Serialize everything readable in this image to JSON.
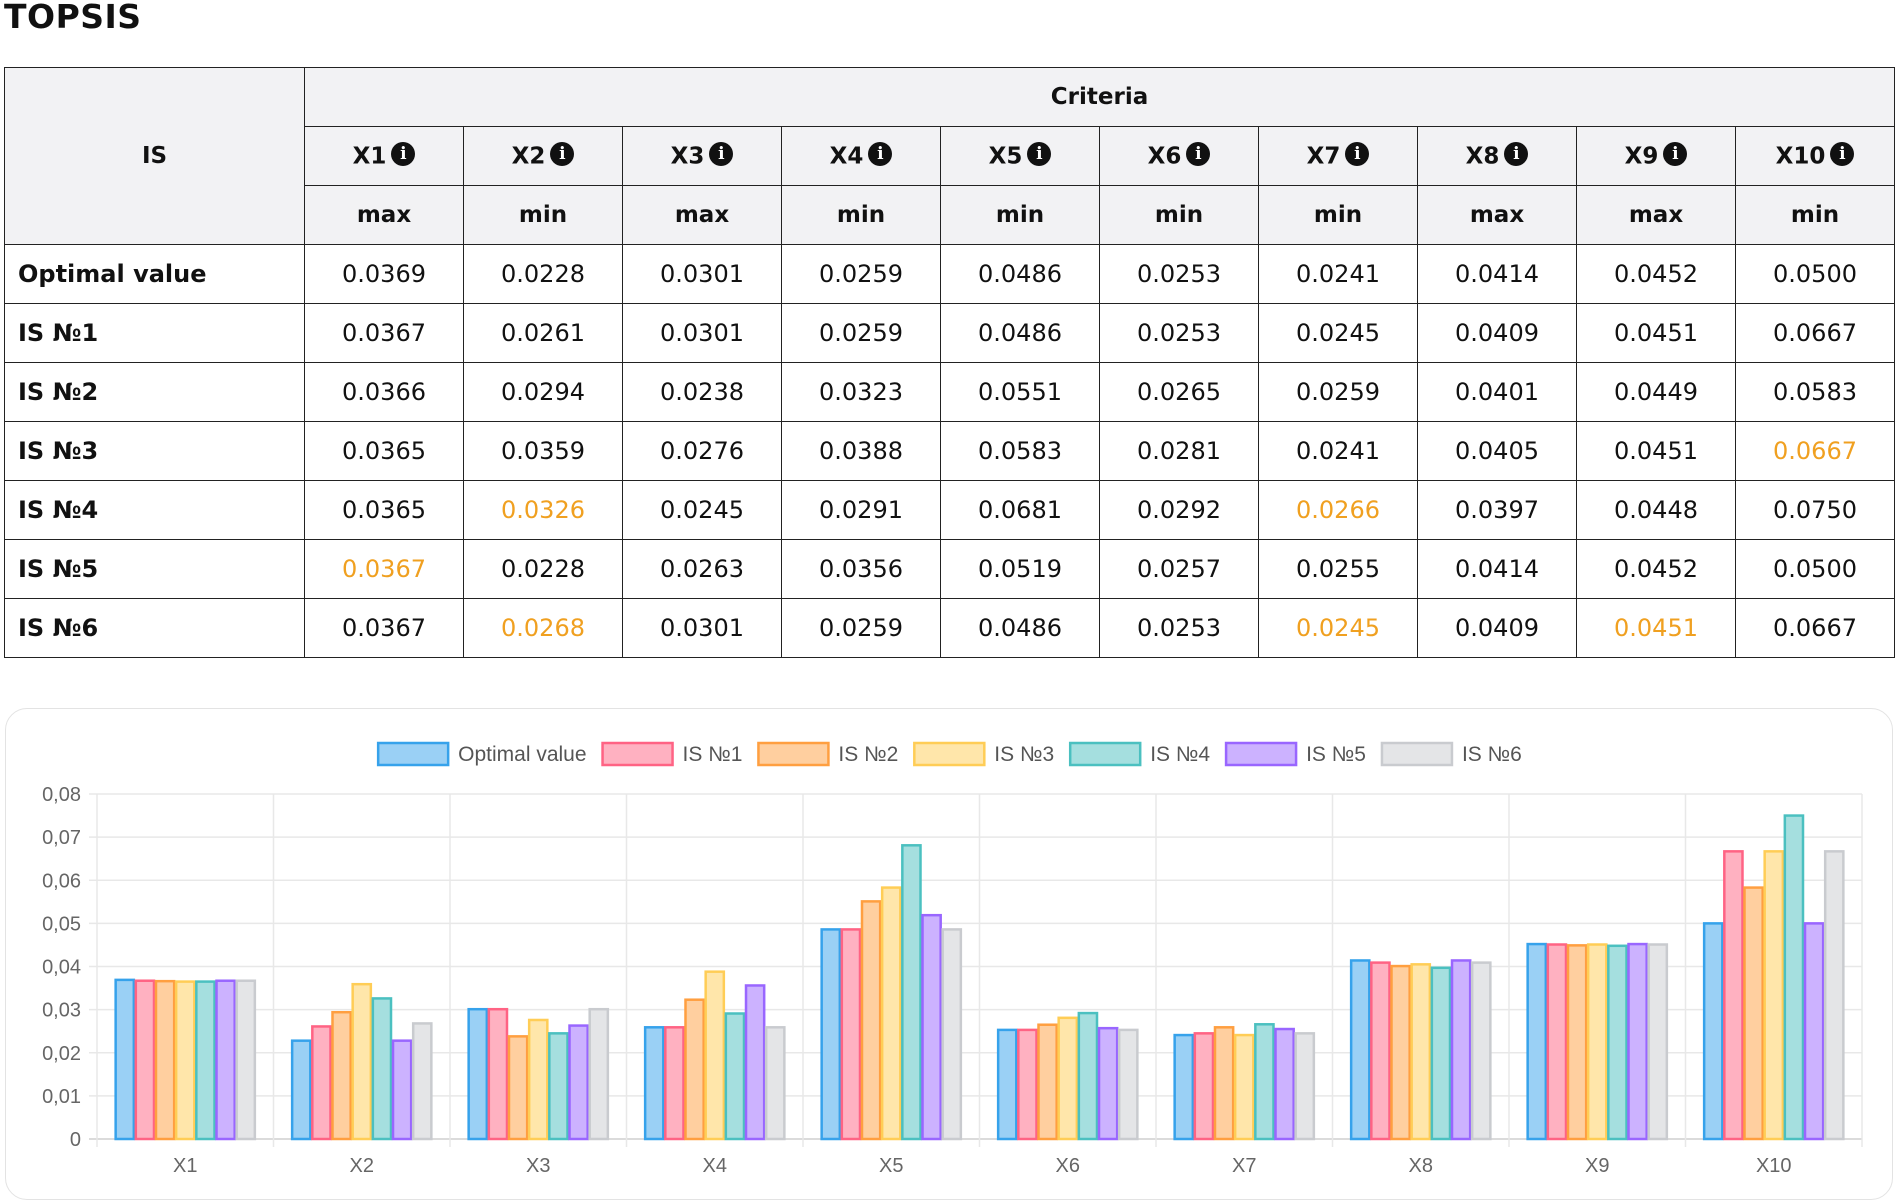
{
  "page": {
    "title": "TOPSIS"
  },
  "table": {
    "is_header": "IS",
    "criteria_header": "Criteria",
    "criteria": [
      {
        "name": "X1",
        "direction": "max"
      },
      {
        "name": "X2",
        "direction": "min"
      },
      {
        "name": "X3",
        "direction": "max"
      },
      {
        "name": "X4",
        "direction": "min"
      },
      {
        "name": "X5",
        "direction": "min"
      },
      {
        "name": "X6",
        "direction": "min"
      },
      {
        "name": "X7",
        "direction": "min"
      },
      {
        "name": "X8",
        "direction": "max"
      },
      {
        "name": "X9",
        "direction": "max"
      },
      {
        "name": "X10",
        "direction": "min"
      }
    ],
    "info_icon": "info-circle-icon",
    "highlight_color": "#f0a020",
    "rows": [
      {
        "label": "Optimal value",
        "values": [
          "0.0369",
          "0.0228",
          "0.0301",
          "0.0259",
          "0.0486",
          "0.0253",
          "0.0241",
          "0.0414",
          "0.0452",
          "0.0500"
        ],
        "highlights": []
      },
      {
        "label": "IS №1",
        "values": [
          "0.0367",
          "0.0261",
          "0.0301",
          "0.0259",
          "0.0486",
          "0.0253",
          "0.0245",
          "0.0409",
          "0.0451",
          "0.0667"
        ],
        "highlights": []
      },
      {
        "label": "IS №2",
        "values": [
          "0.0366",
          "0.0294",
          "0.0238",
          "0.0323",
          "0.0551",
          "0.0265",
          "0.0259",
          "0.0401",
          "0.0449",
          "0.0583"
        ],
        "highlights": []
      },
      {
        "label": "IS №3",
        "values": [
          "0.0365",
          "0.0359",
          "0.0276",
          "0.0388",
          "0.0583",
          "0.0281",
          "0.0241",
          "0.0405",
          "0.0451",
          "0.0667"
        ],
        "highlights": [
          9
        ]
      },
      {
        "label": "IS №4",
        "values": [
          "0.0365",
          "0.0326",
          "0.0245",
          "0.0291",
          "0.0681",
          "0.0292",
          "0.0266",
          "0.0397",
          "0.0448",
          "0.0750"
        ],
        "highlights": [
          1,
          6
        ]
      },
      {
        "label": "IS №5",
        "values": [
          "0.0367",
          "0.0228",
          "0.0263",
          "0.0356",
          "0.0519",
          "0.0257",
          "0.0255",
          "0.0414",
          "0.0452",
          "0.0500"
        ],
        "highlights": [
          0
        ]
      },
      {
        "label": "IS №6",
        "values": [
          "0.0367",
          "0.0268",
          "0.0301",
          "0.0259",
          "0.0486",
          "0.0253",
          "0.0245",
          "0.0409",
          "0.0451",
          "0.0667"
        ],
        "highlights": [
          1,
          6,
          8
        ]
      }
    ]
  },
  "chart_data": {
    "type": "bar",
    "categories": [
      "X1",
      "X2",
      "X3",
      "X4",
      "X5",
      "X6",
      "X7",
      "X8",
      "X9",
      "X10"
    ],
    "ylim": [
      0,
      0.08
    ],
    "yticks": [
      "0",
      "0,01",
      "0,02",
      "0,03",
      "0,04",
      "0,05",
      "0,06",
      "0,07",
      "0,08"
    ],
    "legend_position": "top",
    "grid": true,
    "series": [
      {
        "name": "Optimal value",
        "stroke": "#36a2eb",
        "fill": "#9ad0f5",
        "values": [
          0.0369,
          0.0228,
          0.0301,
          0.0259,
          0.0486,
          0.0253,
          0.0241,
          0.0414,
          0.0452,
          0.05
        ]
      },
      {
        "name": "IS №1",
        "stroke": "#ff6384",
        "fill": "#ffb1c1",
        "values": [
          0.0367,
          0.0261,
          0.0301,
          0.0259,
          0.0486,
          0.0253,
          0.0245,
          0.0409,
          0.0451,
          0.0667
        ]
      },
      {
        "name": "IS №2",
        "stroke": "#ff9f40",
        "fill": "#ffcf9f",
        "values": [
          0.0366,
          0.0294,
          0.0238,
          0.0323,
          0.0551,
          0.0265,
          0.0259,
          0.0401,
          0.0449,
          0.0583
        ]
      },
      {
        "name": "IS №3",
        "stroke": "#ffcd56",
        "fill": "#ffe6aa",
        "values": [
          0.0365,
          0.0359,
          0.0276,
          0.0388,
          0.0583,
          0.0281,
          0.0241,
          0.0405,
          0.0451,
          0.0667
        ]
      },
      {
        "name": "IS №4",
        "stroke": "#4bc0c0",
        "fill": "#a5dfdf",
        "values": [
          0.0365,
          0.0326,
          0.0245,
          0.0291,
          0.0681,
          0.0292,
          0.0266,
          0.0397,
          0.0448,
          0.075
        ]
      },
      {
        "name": "IS №5",
        "stroke": "#9966ff",
        "fill": "#ccb2ff",
        "values": [
          0.0367,
          0.0228,
          0.0263,
          0.0356,
          0.0519,
          0.0257,
          0.0255,
          0.0414,
          0.0452,
          0.05
        ]
      },
      {
        "name": "IS №6",
        "stroke": "#c9cbcf",
        "fill": "#e4e5e7",
        "values": [
          0.0367,
          0.0268,
          0.0301,
          0.0259,
          0.0486,
          0.0253,
          0.0245,
          0.0409,
          0.0451,
          0.0667
        ]
      }
    ]
  }
}
